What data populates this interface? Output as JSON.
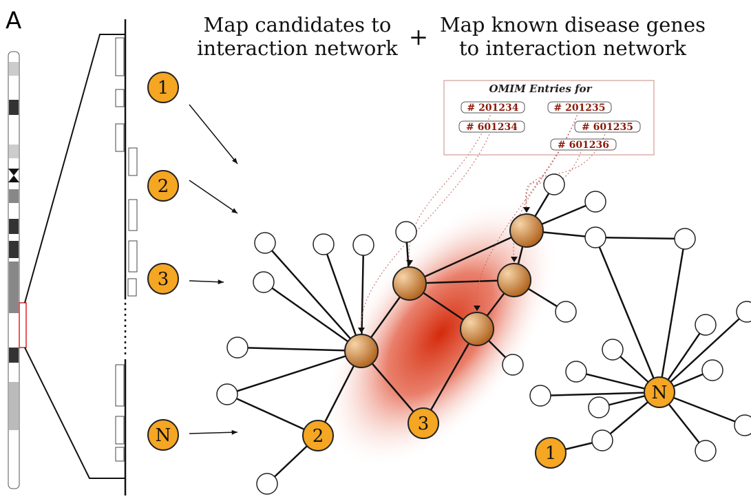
{
  "panel_label": "A",
  "headers": {
    "left": [
      "Map candidates to",
      "interaction network"
    ],
    "plus": "+",
    "right": [
      "Map known disease genes",
      "to interaction network"
    ]
  },
  "omim": {
    "title": "OMIM Entries for",
    "entries": [
      "# 201234",
      "# 201235",
      "# 601234",
      "# 601235",
      "# 601236"
    ]
  },
  "candidates": [
    "1",
    "2",
    "3",
    "N"
  ],
  "network_labels": [
    "2",
    "3",
    "N",
    "1"
  ]
}
